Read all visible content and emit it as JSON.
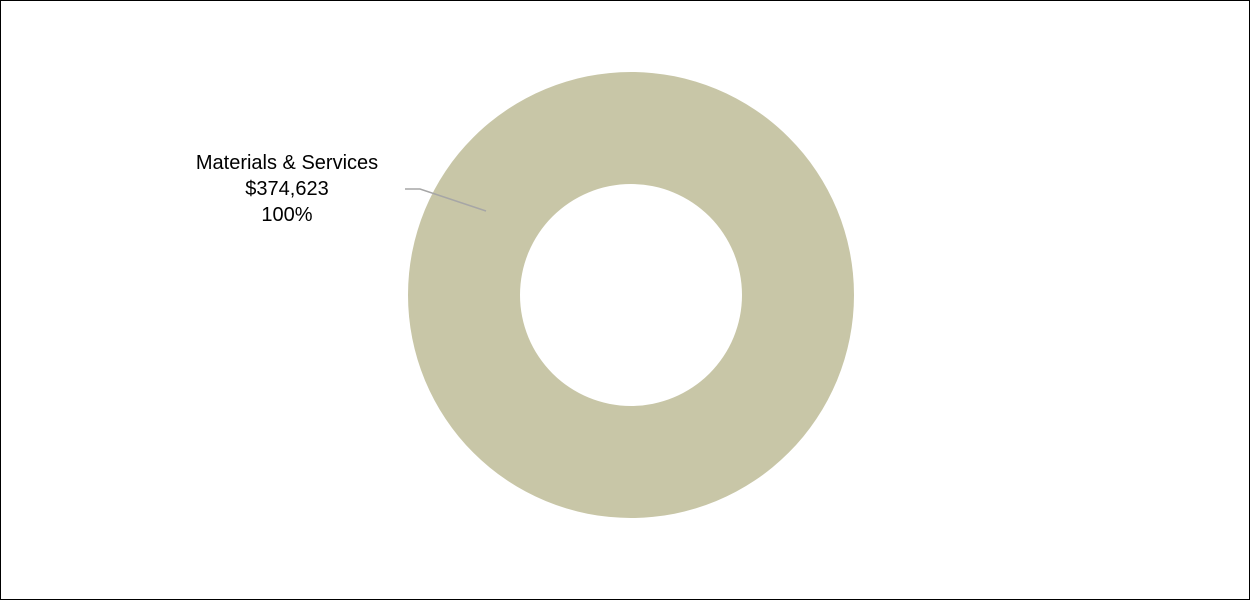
{
  "chart_data": {
    "type": "pie",
    "variant": "donut",
    "title": "",
    "slices": [
      {
        "label": "Materials & Services",
        "value": 374623,
        "value_label": "$374,623",
        "percent_label": "100%",
        "color": "#c8c6a7"
      }
    ],
    "legend": "none",
    "label_placement": "outside-left-with-leader"
  }
}
